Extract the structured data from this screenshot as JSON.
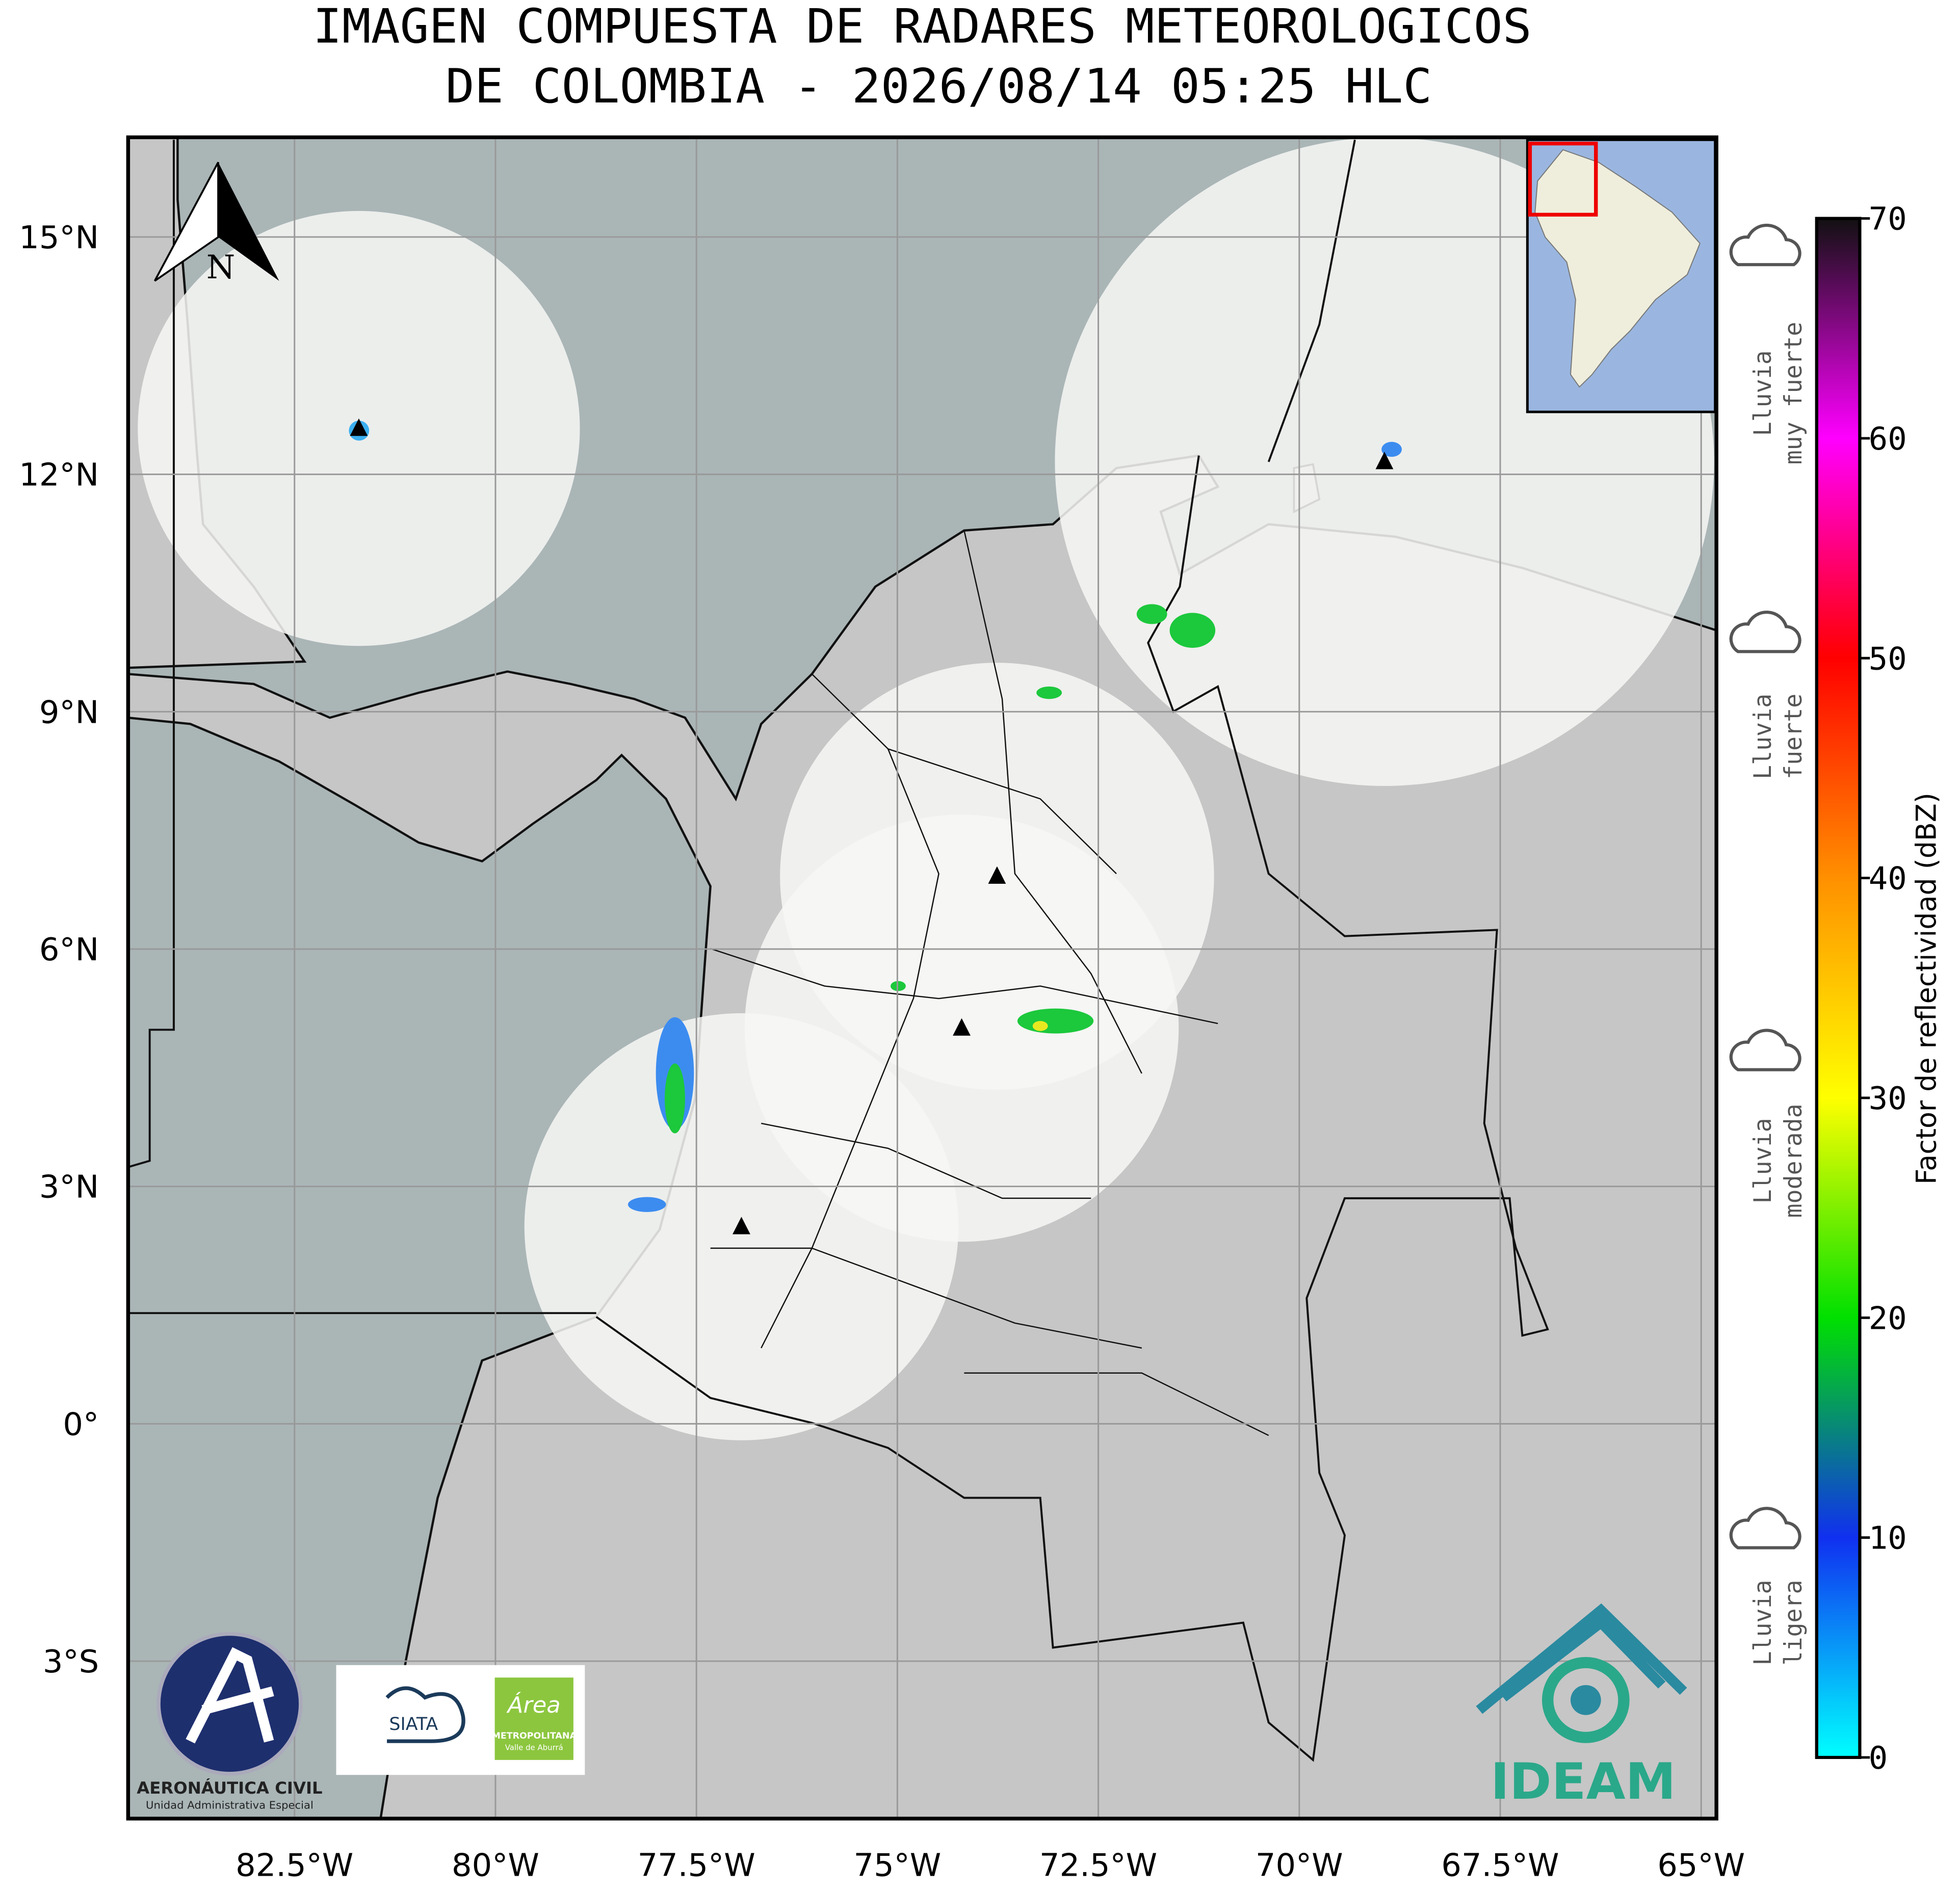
{
  "title": [
    "IMAGEN COMPUESTA DE RADARES METEOROLOGICOS",
    "DE COLOMBIA - 2026/08/14 05:25 HLC"
  ],
  "map": {
    "xlim": [
      -84.57,
      -64.81
    ],
    "ylim": [
      -4.99,
      16.26
    ],
    "xticks": [
      {
        "value": -82.5,
        "label": "82.5°W"
      },
      {
        "value": -80,
        "label": "80°W"
      },
      {
        "value": -77.5,
        "label": "77.5°W"
      },
      {
        "value": -75,
        "label": "75°W"
      },
      {
        "value": -72.5,
        "label": "72.5°W"
      },
      {
        "value": -70,
        "label": "70°W"
      },
      {
        "value": -67.5,
        "label": "67.5°W"
      },
      {
        "value": -65,
        "label": "65°W"
      }
    ],
    "yticks": [
      {
        "value": 15,
        "label": "15°N"
      },
      {
        "value": 12,
        "label": "12°N"
      },
      {
        "value": 9,
        "label": "9°N"
      },
      {
        "value": 6,
        "label": "6°N"
      },
      {
        "value": 3,
        "label": "3°N"
      },
      {
        "value": 0,
        "label": "0°"
      },
      {
        "value": -3,
        "label": "3°S"
      }
    ],
    "grid": true,
    "radars": [
      {
        "lon": -81.7,
        "lat": 12.58,
        "radius_deg": 2.75
      },
      {
        "lon": -68.94,
        "lat": 12.16,
        "radius_deg": 4.1
      },
      {
        "lon": -73.76,
        "lat": 6.92,
        "radius_deg": 2.7
      },
      {
        "lon": -74.2,
        "lat": 5.0,
        "radius_deg": 2.7
      },
      {
        "lon": -76.94,
        "lat": 2.49,
        "radius_deg": 2.7
      }
    ]
  },
  "north_label": "N",
  "colorbar": {
    "label": "Factor de reflectividad (dBZ)",
    "lim": [
      0,
      70
    ],
    "ticks": [
      0,
      10,
      20,
      30,
      40,
      50,
      60,
      70
    ],
    "colors": [
      "#00ffff",
      "#1030f0",
      "#00e000",
      "#ffff00",
      "#ff9000",
      "#ff0000",
      "#ff00ff",
      "#111111"
    ]
  },
  "rain_classes": [
    {
      "lines": [
        "Lluvia",
        "muy fuerte"
      ]
    },
    {
      "lines": [
        "Lluvia",
        "fuerte"
      ]
    },
    {
      "lines": [
        "Lluvia",
        "moderada"
      ]
    },
    {
      "lines": [
        "Lluvia",
        "ligera"
      ]
    }
  ],
  "logos": {
    "aerocivil": [
      "AERONÁUTICA CIVIL",
      "Unidad Administrativa Especial"
    ],
    "siata": "SIATA",
    "area": [
      "Área",
      "METROPOLITANA",
      "Valle de Aburrá"
    ],
    "ideam": "IDEAM"
  }
}
